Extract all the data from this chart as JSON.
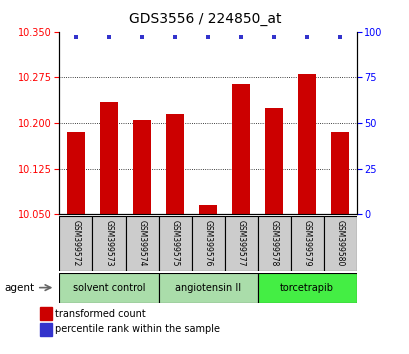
{
  "title": "GDS3556 / 224850_at",
  "samples": [
    "GSM399572",
    "GSM399573",
    "GSM399574",
    "GSM399575",
    "GSM399576",
    "GSM399577",
    "GSM399578",
    "GSM399579",
    "GSM399580"
  ],
  "bar_values": [
    10.185,
    10.235,
    10.205,
    10.215,
    10.065,
    10.265,
    10.225,
    10.28,
    10.185
  ],
  "percentile_values": [
    97,
    97,
    97,
    97,
    97,
    97,
    97,
    97,
    97
  ],
  "ylim_left": [
    10.05,
    10.35
  ],
  "ylim_right": [
    0,
    100
  ],
  "yticks_left": [
    10.05,
    10.125,
    10.2,
    10.275,
    10.35
  ],
  "yticks_right": [
    0,
    25,
    50,
    75,
    100
  ],
  "bar_color": "#CC0000",
  "dot_color": "#3333CC",
  "groups": [
    {
      "label": "solvent control",
      "samples": [
        0,
        1,
        2
      ],
      "color": "#AADDAA"
    },
    {
      "label": "angiotensin II",
      "samples": [
        3,
        4,
        5
      ],
      "color": "#AADDAA"
    },
    {
      "label": "torcetrapib",
      "samples": [
        6,
        7,
        8
      ],
      "color": "#44EE44"
    }
  ],
  "agent_label": "agent",
  "legend_bar_label": "transformed count",
  "legend_dot_label": "percentile rank within the sample",
  "sample_box_color": "#CCCCCC",
  "grid_color": "#000000",
  "title_fontsize": 10,
  "tick_fontsize": 7,
  "bar_width": 0.55
}
